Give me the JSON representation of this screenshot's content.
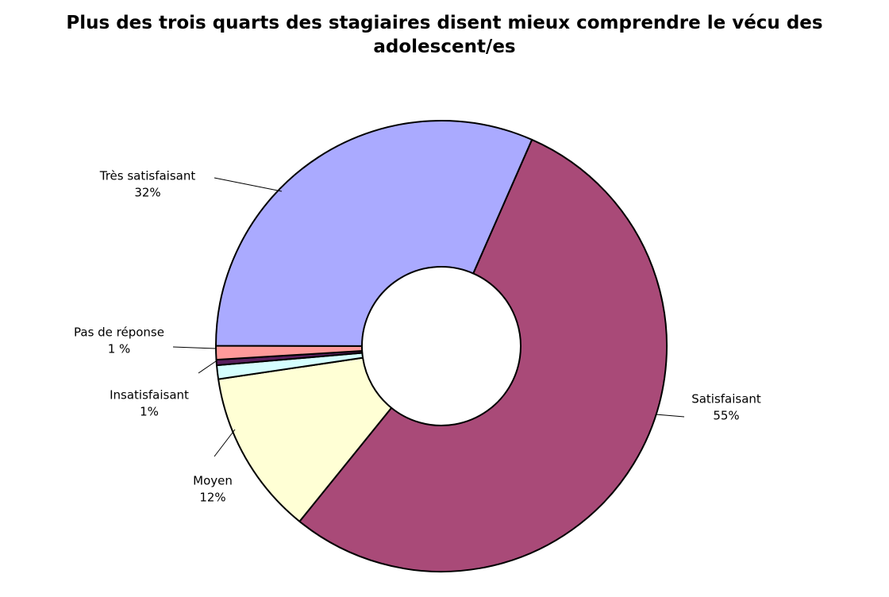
{
  "chart_data": {
    "type": "donut",
    "title": "Plus des trois quarts des stagiaires disent mieux comprendre le vécu des adolescent/es",
    "categories": [
      "Satisfaisant",
      "Moyen",
      "Insatisfaisant",
      null,
      "Pas de réponse",
      "Très satisfaisant"
    ],
    "values": [
      55,
      12,
      1,
      0.4,
      1,
      32
    ],
    "value_labels": [
      "55%",
      "12%",
      "1%",
      null,
      "1 %",
      "32%"
    ],
    "colors": [
      "#a94a78",
      "#ffffd5",
      "#d5ffff",
      "#5a1f5e",
      "#ff9a9a",
      "#aaaaff"
    ]
  }
}
